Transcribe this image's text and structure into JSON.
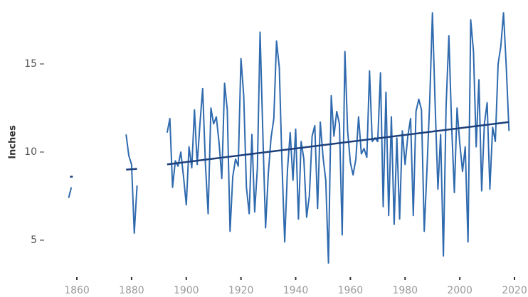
{
  "chart_data": {
    "type": "line",
    "y_label": "Inches",
    "color": "#2f6aae",
    "trend_color": "#1c3f7c",
    "xlim": [
      1855,
      2022
    ],
    "ylim": [
      2.5,
      18.6
    ],
    "xticks": [
      1860,
      1880,
      1900,
      1920,
      1940,
      1960,
      1980,
      2000,
      2020
    ],
    "yticks": [
      5,
      10,
      15
    ],
    "x": [
      1857,
      1858,
      1870,
      1878,
      1879,
      1880,
      1881,
      1882,
      1890,
      1893,
      1894,
      1895,
      1896,
      1897,
      1898,
      1899,
      1900,
      1901,
      1902,
      1903,
      1904,
      1905,
      1906,
      1907,
      1908,
      1909,
      1910,
      1911,
      1912,
      1913,
      1914,
      1915,
      1916,
      1917,
      1918,
      1919,
      1920,
      1921,
      1922,
      1923,
      1924,
      1925,
      1926,
      1927,
      1928,
      1929,
      1930,
      1931,
      1932,
      1933,
      1934,
      1935,
      1936,
      1937,
      1938,
      1939,
      1940,
      1941,
      1942,
      1943,
      1944,
      1945,
      1946,
      1947,
      1948,
      1949,
      1950,
      1951,
      1952,
      1953,
      1954,
      1955,
      1956,
      1957,
      1958,
      1959,
      1960,
      1961,
      1962,
      1963,
      1964,
      1965,
      1966,
      1967,
      1968,
      1969,
      1970,
      1971,
      1972,
      1973,
      1974,
      1975,
      1976,
      1977,
      1978,
      1979,
      1980,
      1981,
      1982,
      1983,
      1984,
      1985,
      1986,
      1987,
      1988,
      1989,
      1990,
      1991,
      1992,
      1993,
      1994,
      1995,
      1996,
      1997,
      1998,
      1999,
      2000,
      2001,
      2002,
      2003,
      2004,
      2005,
      2006,
      2007,
      2008,
      2009,
      2010,
      2011,
      2012,
      2013,
      2014,
      2015,
      2016,
      2017,
      2018
    ],
    "values": [
      7.4,
      8.0,
      null,
      11.0,
      9.8,
      9.3,
      5.4,
      8.1,
      null,
      11.1,
      11.9,
      8.0,
      9.5,
      9.2,
      10.0,
      8.6,
      7.0,
      10.3,
      9.1,
      12.4,
      9.3,
      11.6,
      13.6,
      9.3,
      6.5,
      12.5,
      11.6,
      12.0,
      10.5,
      8.5,
      13.9,
      12.4,
      5.5,
      8.6,
      9.6,
      9.2,
      15.3,
      13.2,
      8.0,
      6.5,
      11.0,
      6.6,
      9.1,
      16.8,
      11.0,
      5.7,
      8.8,
      10.8,
      11.9,
      16.3,
      14.8,
      9.3,
      4.9,
      9.0,
      11.1,
      8.4,
      11.3,
      6.2,
      10.6,
      9.6,
      6.3,
      7.5,
      10.9,
      11.5,
      6.8,
      11.7,
      9.7,
      8.4,
      3.7,
      13.2,
      10.9,
      12.3,
      11.6,
      5.3,
      15.7,
      11.2,
      9.4,
      8.7,
      9.6,
      12.0,
      9.9,
      10.2,
      9.7,
      14.6,
      10.6,
      10.8,
      10.6,
      14.5,
      6.9,
      13.4,
      6.4,
      12.0,
      5.9,
      10.8,
      6.2,
      11.2,
      9.3,
      10.9,
      11.9,
      6.4,
      12.3,
      13.0,
      12.4,
      5.5,
      9.0,
      12.9,
      17.9,
      12.7,
      7.9,
      11.0,
      4.1,
      12.6,
      16.6,
      11.6,
      7.7,
      12.5,
      10.5,
      8.9,
      10.3,
      4.9,
      17.5,
      15.7,
      10.3,
      14.1,
      7.8,
      11.6,
      12.8,
      7.9,
      11.4,
      10.6,
      15.0,
      16.0,
      17.9,
      14.8,
      11.2
    ],
    "trend": [
      {
        "x": [
          1857.5,
          1858.5
        ],
        "values": [
          8.6,
          8.6
        ]
      },
      {
        "x": [
          1878,
          1882
        ],
        "values": [
          9.0,
          9.05
        ]
      },
      {
        "x": [
          1893,
          2018
        ],
        "values": [
          9.3,
          11.7
        ]
      }
    ]
  }
}
